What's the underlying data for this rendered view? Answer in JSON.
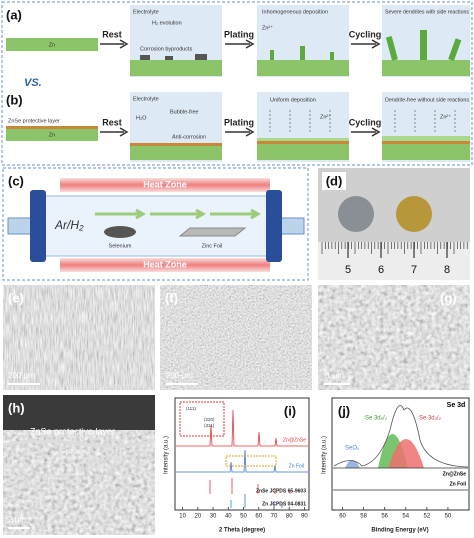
{
  "panels": {
    "a": {
      "label": "(a)",
      "steps": [
        "Rest",
        "Plating",
        "Cycling"
      ],
      "zn": "Zn",
      "electrolyte": "Electrolyte",
      "h2": "H₂ evolution",
      "corrosion": "Corrosion byproducts",
      "inhomogeneous": "Inhomogeneous deposition",
      "ion": "Zn²⁺",
      "severe": "Severe dendrites with side reactions"
    },
    "vs": "VS.",
    "b": {
      "label": "(b)",
      "steps": [
        "Rest",
        "Plating",
        "Cycling"
      ],
      "layer": "ZnSe protective layer",
      "zn": "Zn",
      "electrolyte": "Electrolyte",
      "water": "H₂O",
      "bubble": "Bubble-free",
      "anti": "Anti-corrosion",
      "uniform": "Uniform deposition",
      "ion": "Zn²⁺",
      "free": "Dendrite-free without side reactions"
    },
    "c": {
      "label": "(c)",
      "heat_zone": "Heat   Zone",
      "gas": "Ar/H₂",
      "selenium": "Selenium",
      "foil": "Zinc Foil"
    },
    "d": {
      "label": "(d)",
      "ruler_ticks": [
        5,
        6,
        7,
        8
      ]
    },
    "e": {
      "label": "(e)",
      "scale": "200 μm"
    },
    "f": {
      "label": "(f)",
      "scale": "200 μm"
    },
    "g": {
      "label": "(g)",
      "scale": "1 μm"
    },
    "h": {
      "label": "(h)",
      "layer": "ZnSe protective layer",
      "thickness": "~500 nm",
      "scale": "2 μm"
    },
    "i": {
      "label": "(i)",
      "xlabel": "2 Theta (degree)",
      "ylabel": "Intensity (a.u.)",
      "xlim": [
        5,
        93
      ],
      "xticks": [
        10,
        20,
        30,
        40,
        50,
        60,
        70,
        80,
        90
      ],
      "traces": [
        "Zn@ZnSe",
        "Zn Foil",
        "ZnSe JCPDS 65-9603",
        "Zn JCPDS 04-0831"
      ],
      "inset_peaks": [
        "(111)",
        "(220)",
        "(311)"
      ]
    },
    "j": {
      "label": "(j)",
      "title": "Se 3d",
      "xlabel": "Binding Energy (eV)",
      "ylabel": "Intensity (a.u.)",
      "xlim": [
        61,
        48
      ],
      "xticks": [
        60,
        58,
        56,
        54,
        52,
        50
      ],
      "peaks": [
        "SeOₓ",
        "Se 3d₅/₂",
        "Se 3d₃/₂"
      ],
      "traces": [
        "Zn@ZnSe",
        "Zn Foil"
      ]
    }
  }
}
